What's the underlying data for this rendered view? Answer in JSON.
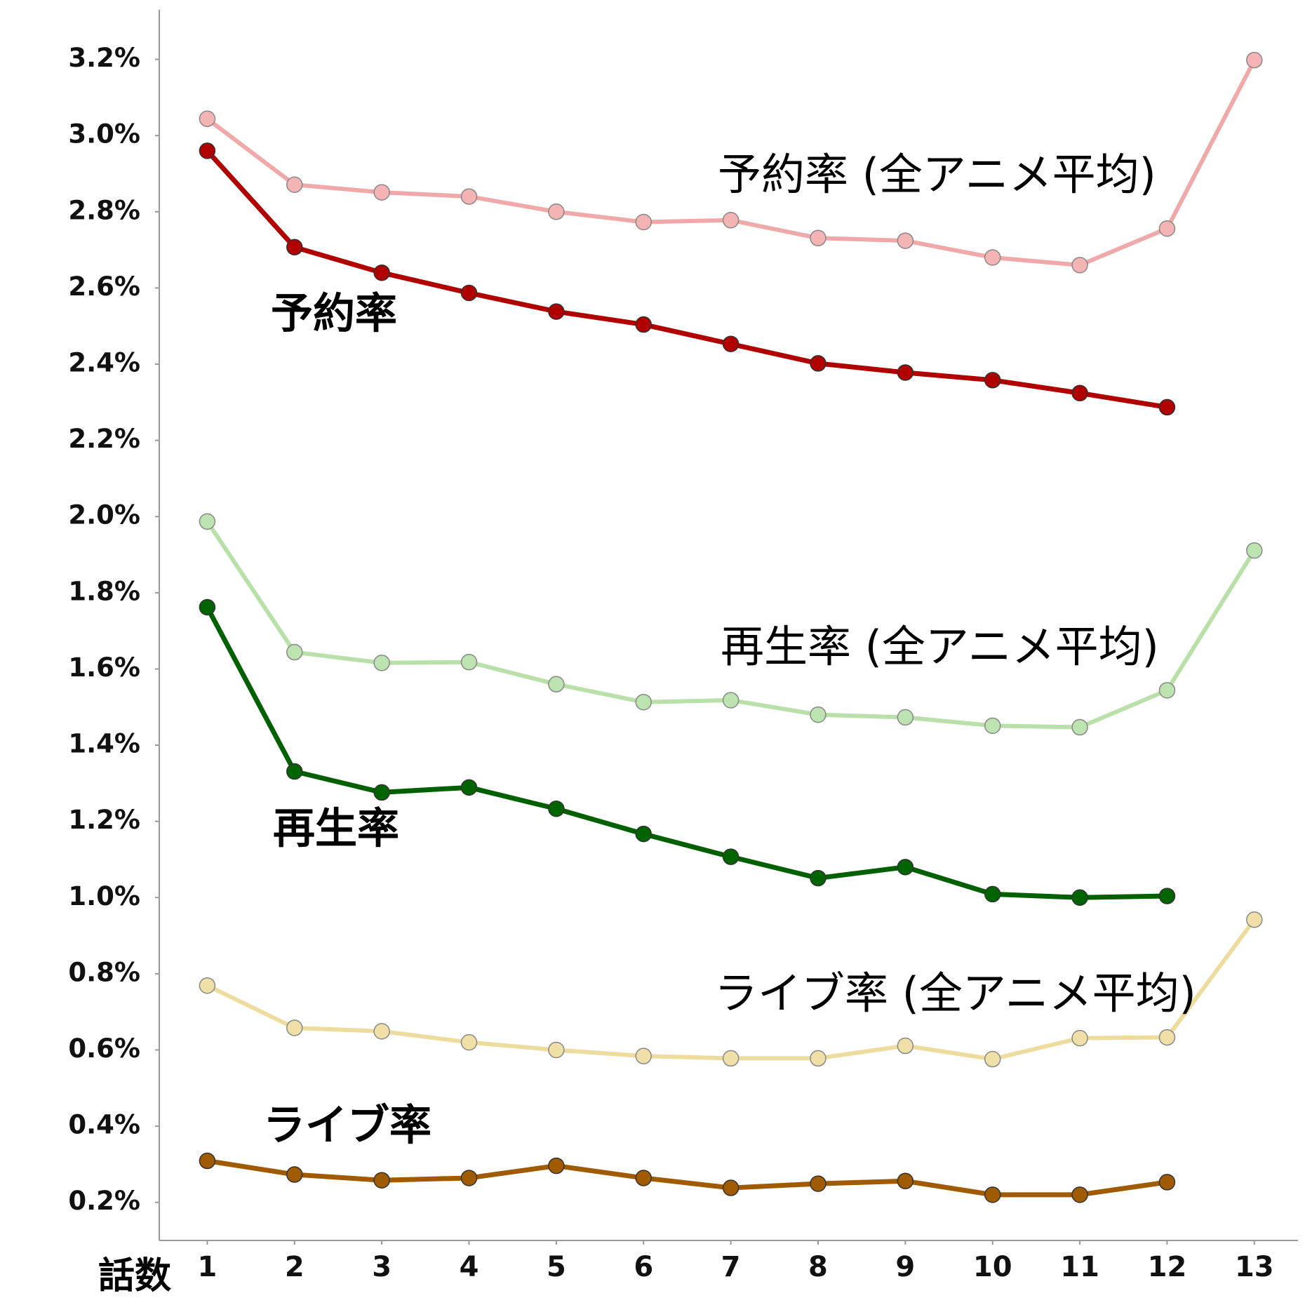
{
  "chart_data": {
    "type": "line",
    "x_label": "話数",
    "x": [
      1,
      2,
      3,
      4,
      5,
      6,
      7,
      8,
      9,
      10,
      11,
      12,
      13
    ],
    "xticks": [
      1,
      2,
      3,
      4,
      5,
      6,
      7,
      8,
      9,
      10,
      11,
      12,
      13
    ],
    "xlim": [
      0.45,
      13.5
    ],
    "ylim": [
      0.1,
      3.33
    ],
    "yticks": [
      {
        "value": 0.2,
        "label": "0.2%"
      },
      {
        "value": 0.4,
        "label": "0.4%"
      },
      {
        "value": 0.6,
        "label": "0.6%"
      },
      {
        "value": 0.8,
        "label": "0.8%"
      },
      {
        "value": 1.0,
        "label": "1.0%"
      },
      {
        "value": 1.2,
        "label": "1.2%"
      },
      {
        "value": 1.4,
        "label": "1.4%"
      },
      {
        "value": 1.6,
        "label": "1.6%"
      },
      {
        "value": 1.8,
        "label": "1.8%"
      },
      {
        "value": 2.0,
        "label": "2.0%"
      },
      {
        "value": 2.2,
        "label": "2.2%"
      },
      {
        "value": 2.4,
        "label": "2.4%"
      },
      {
        "value": 2.6,
        "label": "2.6%"
      },
      {
        "value": 2.8,
        "label": "2.8%"
      },
      {
        "value": 3.0,
        "label": "3.0%"
      },
      {
        "value": 3.2,
        "label": "3.2%"
      }
    ],
    "grid": false,
    "series": [
      {
        "name": "予約率 (全アニメ平均)",
        "color": "#f0a8a8",
        "marker_color": "#f4b4b4",
        "values": [
          3.044,
          2.871,
          2.851,
          2.84,
          2.8,
          2.773,
          2.778,
          2.731,
          2.724,
          2.68,
          2.66,
          2.756,
          3.198
        ]
      },
      {
        "name": "予約率",
        "color": "#b00000",
        "marker_color": "#b00000",
        "values": [
          2.96,
          2.707,
          2.64,
          2.587,
          2.538,
          2.504,
          2.453,
          2.402,
          2.378,
          2.358,
          2.324,
          2.287,
          null
        ]
      },
      {
        "name": "再生率 (全アニメ平均)",
        "color": "#b8e0a8",
        "marker_color": "#bde3b0",
        "values": [
          1.987,
          1.644,
          1.616,
          1.618,
          1.56,
          1.513,
          1.518,
          1.48,
          1.473,
          1.451,
          1.447,
          1.544,
          1.911
        ]
      },
      {
        "name": "再生率",
        "color": "#006000",
        "marker_color": "#006400",
        "values": [
          1.762,
          1.331,
          1.276,
          1.289,
          1.233,
          1.167,
          1.107,
          1.051,
          1.08,
          1.009,
          1.0,
          1.004,
          null
        ]
      },
      {
        "name": "ライブ率 (全アニメ平均)",
        "color": "#eedc9e",
        "marker_color": "#f0e0a8",
        "values": [
          0.769,
          0.658,
          0.649,
          0.62,
          0.6,
          0.584,
          0.578,
          0.578,
          0.611,
          0.576,
          0.631,
          0.633,
          0.942
        ]
      },
      {
        "name": "ライブ率",
        "color": "#a05a00",
        "marker_color": "#a05a00",
        "values": [
          0.309,
          0.273,
          0.258,
          0.264,
          0.296,
          0.264,
          0.238,
          0.249,
          0.256,
          0.22,
          0.22,
          0.253,
          null
        ]
      }
    ]
  }
}
